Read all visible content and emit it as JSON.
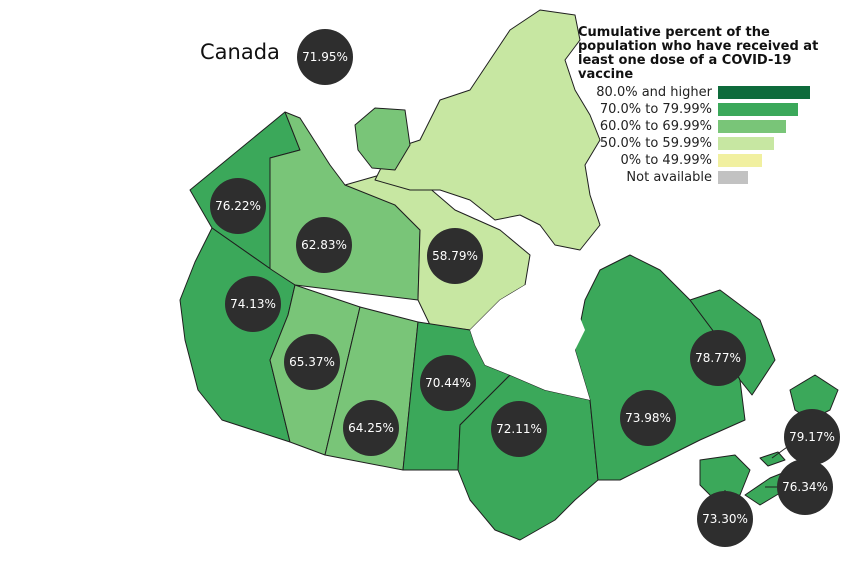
{
  "country": {
    "name": "Canada",
    "value": "71.95%"
  },
  "legend": {
    "title_lines": [
      "Cumulative percent of the",
      "population who have received at",
      "least one dose of a COVID-19 vaccine"
    ],
    "items": [
      {
        "label": "80.0% and higher",
        "color": "#0e6b3b"
      },
      {
        "label": "70.0% to 79.99%",
        "color": "#3ba85a"
      },
      {
        "label": "60.0% to 69.99%",
        "color": "#79c578"
      },
      {
        "label": "50.0% to 59.99%",
        "color": "#c7e7a2"
      },
      {
        "label": "0% to 49.99%",
        "color": "#f1f0a0"
      },
      {
        "label": "Not available",
        "color": "#c2c2c2"
      }
    ]
  },
  "regions": [
    {
      "name": "Yukon",
      "value": "76.22%",
      "color": "#3ba85a"
    },
    {
      "name": "Northwest Territories",
      "value": "62.83%",
      "color": "#79c578"
    },
    {
      "name": "Nunavut",
      "value": "58.79%",
      "color": "#c7e7a2"
    },
    {
      "name": "British Columbia",
      "value": "74.13%",
      "color": "#3ba85a"
    },
    {
      "name": "Alberta",
      "value": "65.37%",
      "color": "#79c578"
    },
    {
      "name": "Saskatchewan",
      "value": "64.25%",
      "color": "#79c578"
    },
    {
      "name": "Manitoba",
      "value": "70.44%",
      "color": "#3ba85a"
    },
    {
      "name": "Ontario",
      "value": "72.11%",
      "color": "#3ba85a"
    },
    {
      "name": "Quebec",
      "value": "73.98%",
      "color": "#3ba85a"
    },
    {
      "name": "Newfoundland and Labrador",
      "value": "78.77%",
      "color": "#3ba85a"
    },
    {
      "name": "Prince Edward Island",
      "value": "79.17%",
      "color": "#3ba85a"
    },
    {
      "name": "Nova Scotia",
      "value": "76.34%",
      "color": "#3ba85a"
    },
    {
      "name": "New Brunswick",
      "value": "73.30%",
      "color": "#3ba85a"
    }
  ]
}
